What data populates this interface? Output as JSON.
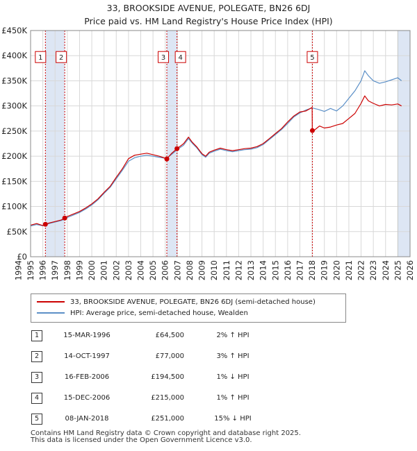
{
  "title": "33, BROOKSIDE AVENUE, POLEGATE, BN26 6DJ",
  "subtitle": "Price paid vs. HM Land Registry's House Price Index (HPI)",
  "colors": {
    "property": "#cc0000",
    "hpi": "#5b8fc7",
    "shade": "#dde6f4",
    "grid": "#d8d8d8"
  },
  "chart_data": {
    "type": "line",
    "title": "33, BROOKSIDE AVENUE, POLEGATE, BN26 6DJ — Price paid vs. HM Land Registry's House Price Index (HPI)",
    "xlim": [
      1995,
      2026
    ],
    "ylim": [
      0,
      450000
    ],
    "x_ticks": [
      1994,
      1995,
      1996,
      1997,
      1998,
      1999,
      2000,
      2001,
      2002,
      2003,
      2004,
      2005,
      2006,
      2007,
      2008,
      2009,
      2010,
      2011,
      2012,
      2013,
      2014,
      2015,
      2016,
      2017,
      2018,
      2019,
      2020,
      2021,
      2022,
      2023,
      2024,
      2025,
      2026
    ],
    "y_ticks": [
      0,
      50000,
      100000,
      150000,
      200000,
      250000,
      300000,
      350000,
      400000,
      450000
    ],
    "y_tick_labels": [
      "£0",
      "£50K",
      "£100K",
      "£150K",
      "£200K",
      "£250K",
      "£300K",
      "£350K",
      "£400K",
      "£450K"
    ],
    "series": [
      {
        "name": "33, BROOKSIDE AVENUE, POLEGATE, BN26 6DJ (semi-detached house)",
        "x": [
          1995.0,
          1995.5,
          1996.0,
          1996.21,
          1996.5,
          1997.0,
          1997.5,
          1997.79,
          1998.0,
          1998.5,
          1999.0,
          1999.5,
          2000.0,
          2000.5,
          2001.0,
          2001.5,
          2002.0,
          2002.5,
          2003.0,
          2003.5,
          2004.0,
          2004.5,
          2005.0,
          2005.5,
          2006.0,
          2006.13,
          2006.5,
          2006.96,
          2007.5,
          2007.9,
          2008.2,
          2008.6,
          2009.0,
          2009.3,
          2009.6,
          2010.0,
          2010.5,
          2011.0,
          2011.5,
          2012.0,
          2012.5,
          2013.0,
          2013.5,
          2014.0,
          2014.5,
          2015.0,
          2015.5,
          2016.0,
          2016.5,
          2017.0,
          2017.5,
          2018.0,
          2018.02,
          2018.2,
          2018.6,
          2019.0,
          2019.5,
          2020.0,
          2020.5,
          2021.0,
          2021.5,
          2022.0,
          2022.3,
          2022.6,
          2023.0,
          2023.5,
          2024.0,
          2024.5,
          2025.0,
          2025.3
        ],
        "y": [
          63000,
          66000,
          62000,
          64500,
          67000,
          70000,
          73000,
          77000,
          80000,
          85000,
          90000,
          97000,
          105000,
          115000,
          128000,
          140000,
          158000,
          175000,
          195000,
          202000,
          204000,
          206000,
          203000,
          200000,
          196000,
          194500,
          205000,
          215000,
          225000,
          238000,
          228000,
          218000,
          205000,
          200000,
          208000,
          212000,
          216000,
          213000,
          211000,
          213000,
          215000,
          216000,
          219000,
          225000,
          235000,
          245000,
          255000,
          268000,
          280000,
          288000,
          290000,
          297000,
          251000,
          252000,
          260000,
          256000,
          258000,
          262000,
          265000,
          275000,
          285000,
          305000,
          320000,
          310000,
          305000,
          300000,
          303000,
          302000,
          304000,
          300000
        ]
      },
      {
        "name": "HPI: Average price, semi-detached house, Wealden",
        "x": [
          1995.0,
          1995.5,
          1996.0,
          1996.21,
          1996.5,
          1997.0,
          1997.5,
          1997.79,
          1998.0,
          1998.5,
          1999.0,
          1999.5,
          2000.0,
          2000.5,
          2001.0,
          2001.5,
          2002.0,
          2002.5,
          2003.0,
          2003.5,
          2004.0,
          2004.5,
          2005.0,
          2005.5,
          2006.0,
          2006.13,
          2006.5,
          2006.96,
          2007.5,
          2007.9,
          2008.2,
          2008.6,
          2009.0,
          2009.3,
          2009.6,
          2010.0,
          2010.5,
          2011.0,
          2011.5,
          2012.0,
          2012.5,
          2013.0,
          2013.5,
          2014.0,
          2014.5,
          2015.0,
          2015.5,
          2016.0,
          2016.5,
          2017.0,
          2017.5,
          2018.0,
          2018.5,
          2019.0,
          2019.5,
          2020.0,
          2020.5,
          2021.0,
          2021.5,
          2022.0,
          2022.3,
          2022.6,
          2023.0,
          2023.5,
          2024.0,
          2024.5,
          2025.0,
          2025.3
        ],
        "y": [
          61000,
          64000,
          61500,
          63200,
          66000,
          69000,
          72000,
          74800,
          78000,
          83000,
          88000,
          95000,
          103000,
          113000,
          126000,
          138000,
          155000,
          172000,
          190000,
          197000,
          200000,
          202000,
          200000,
          198000,
          196000,
          196500,
          203000,
          212800,
          222000,
          235000,
          226000,
          216000,
          203000,
          198000,
          206000,
          210000,
          214000,
          211000,
          209000,
          211000,
          213000,
          214000,
          217000,
          223000,
          233000,
          243000,
          253000,
          265000,
          278000,
          286000,
          292000,
          296000,
          293000,
          289000,
          295000,
          290000,
          300000,
          315000,
          330000,
          350000,
          370000,
          360000,
          350000,
          345000,
          348000,
          352000,
          356000,
          350000
        ]
      }
    ],
    "sales": [
      {
        "id": "1",
        "x": 1996.21,
        "price": 64500
      },
      {
        "id": "2",
        "x": 1997.79,
        "price": 77000
      },
      {
        "id": "3",
        "x": 2006.13,
        "price": 194500
      },
      {
        "id": "4",
        "x": 2006.96,
        "price": 215000
      },
      {
        "id": "5",
        "x": 2018.02,
        "price": 251000
      }
    ],
    "marker_label_value": 400000,
    "shaded_ranges": [
      [
        1996.21,
        1997.79
      ],
      [
        2006.13,
        2006.96
      ],
      [
        2025.0,
        2026.0
      ]
    ],
    "legend_position": "below"
  },
  "legend": {
    "property_label": "33, BROOKSIDE AVENUE, POLEGATE, BN26 6DJ (semi-detached house)",
    "hpi_label": "HPI: Average price, semi-detached house, Wealden"
  },
  "transactions": [
    {
      "id": "1",
      "date": "15-MAR-1996",
      "price": "£64,500",
      "hpi": "2% ↑ HPI"
    },
    {
      "id": "2",
      "date": "14-OCT-1997",
      "price": "£77,000",
      "hpi": "3% ↑ HPI"
    },
    {
      "id": "3",
      "date": "16-FEB-2006",
      "price": "£194,500",
      "hpi": "1% ↓ HPI"
    },
    {
      "id": "4",
      "date": "15-DEC-2006",
      "price": "£215,000",
      "hpi": "1% ↑ HPI"
    },
    {
      "id": "5",
      "date": "08-JAN-2018",
      "price": "£251,000",
      "hpi": "15% ↓ HPI"
    }
  ],
  "footer": {
    "line1": "Contains HM Land Registry data © Crown copyright and database right 2025.",
    "line2": "This data is licensed under the Open Government Licence v3.0."
  }
}
